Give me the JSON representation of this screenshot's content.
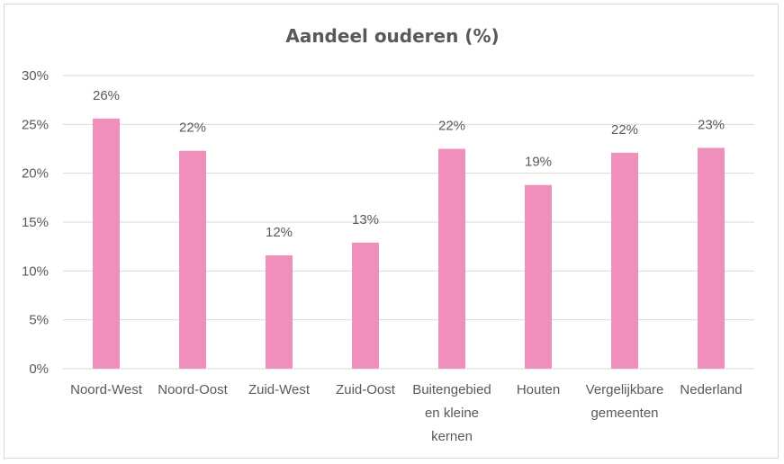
{
  "chart_data": {
    "type": "bar",
    "title": "Aandeel ouderen (%)",
    "xlabel": "",
    "ylabel": "",
    "ylim": [
      0,
      30
    ],
    "yticks": [
      "0%",
      "5%",
      "10%",
      "15%",
      "20%",
      "25%",
      "30%"
    ],
    "grid": true,
    "legend": "none",
    "color": "#ef8fbb",
    "categories": [
      [
        "Noord-West"
      ],
      [
        "Noord-Oost"
      ],
      [
        "Zuid-West"
      ],
      [
        "Zuid-Oost"
      ],
      [
        "Buitengebied",
        "en kleine",
        "kernen"
      ],
      [
        "Houten"
      ],
      [
        "Vergelijkbare",
        "gemeenten"
      ],
      [
        "Nederland"
      ]
    ],
    "values": [
      25.6,
      22.3,
      11.6,
      12.9,
      22.5,
      18.8,
      22.1,
      22.6
    ],
    "data_labels": [
      "26%",
      "22%",
      "12%",
      "13%",
      "22%",
      "19%",
      "22%",
      "23%"
    ]
  }
}
